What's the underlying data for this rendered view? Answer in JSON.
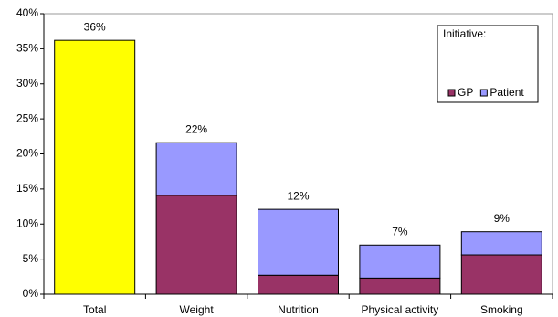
{
  "chart_data": {
    "type": "stacked_bar",
    "categories": [
      "Total",
      "Weight",
      "Nutrition",
      "Physical activity",
      "Smoking"
    ],
    "series": [
      {
        "color": "#ffff00",
        "values": [
          36.2,
          null,
          null,
          null,
          null
        ]
      },
      {
        "name": "GP",
        "color": "#993366",
        "values": [
          null,
          14.1,
          2.7,
          2.3,
          5.6
        ]
      },
      {
        "name": "Patient",
        "color": "#9999ff",
        "values": [
          null,
          7.5,
          9.4,
          4.7,
          3.3
        ]
      }
    ],
    "values": [
      36.2,
      21.6,
      12.1,
      7.0,
      8.9
    ],
    "value_labels": [
      "36%",
      "22%",
      "12%",
      "7%",
      "9%"
    ],
    "legend_title": "Initiative:",
    "legend_position": "upper right",
    "ylim": [
      0,
      40
    ],
    "yticks": [
      {
        "value": 0,
        "label": "0%"
      },
      {
        "value": 5,
        "label": "5%"
      },
      {
        "value": 10,
        "label": "10%"
      },
      {
        "value": 15,
        "label": "15%"
      },
      {
        "value": 20,
        "label": "20%"
      },
      {
        "value": 25,
        "label": "25%"
      },
      {
        "value": 30,
        "label": "30%"
      },
      {
        "value": 35,
        "label": "35%"
      },
      {
        "value": 40,
        "label": "40%"
      }
    ],
    "grid": false
  }
}
